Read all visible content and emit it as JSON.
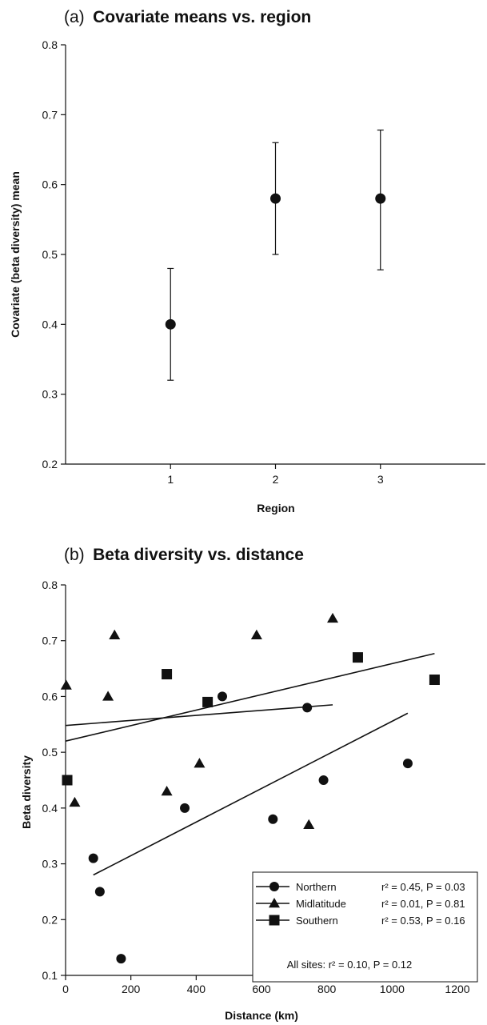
{
  "chart_data": [
    {
      "type": "scatter",
      "panel": "(a)",
      "title": "Covariate   means vs. region",
      "xlabel": "Region",
      "ylabel": "Covariate (beta diversity) mean",
      "xlim": [
        0,
        4
      ],
      "ylim": [
        0.2,
        0.8
      ],
      "xticks": [
        1,
        2,
        3
      ],
      "yticks": [
        0.2,
        0.3,
        0.4,
        0.5,
        0.6,
        0.7,
        0.8
      ],
      "grid": false,
      "points": [
        {
          "x": 1,
          "y": 0.4,
          "err_low": 0.32,
          "err_high": 0.48
        },
        {
          "x": 2,
          "y": 0.58,
          "err_low": 0.5,
          "err_high": 0.66
        },
        {
          "x": 3,
          "y": 0.58,
          "err_low": 0.478,
          "err_high": 0.678
        }
      ]
    },
    {
      "type": "scatter",
      "panel": "(b)",
      "title": "Beta diversity vs. distance",
      "xlabel": "Distance (km)",
      "ylabel": "Beta diversity",
      "xlim": [
        0,
        1200
      ],
      "ylim": [
        0.1,
        0.8
      ],
      "xticks": [
        0,
        200,
        400,
        600,
        800,
        1000,
        1200
      ],
      "yticks": [
        0.1,
        0.2,
        0.3,
        0.4,
        0.5,
        0.6,
        0.7,
        0.8
      ],
      "grid": false,
      "legend_position": "bottom-right",
      "series": [
        {
          "name": "Northern",
          "marker": "circle",
          "stat": "r² = 0.45, P = 0.03",
          "points": [
            [
              85,
              0.31
            ],
            [
              105,
              0.25
            ],
            [
              170,
              0.13
            ],
            [
              365,
              0.4
            ],
            [
              480,
              0.6
            ],
            [
              635,
              0.38
            ],
            [
              740,
              0.58
            ],
            [
              790,
              0.45
            ],
            [
              1048,
              0.48
            ]
          ],
          "fit": [
            [
              85,
              0.28
            ],
            [
              1048,
              0.57
            ]
          ]
        },
        {
          "name": "Midlatitude",
          "marker": "triangle",
          "stat": "r² = 0.01, P = 0.81",
          "points": [
            [
              2,
              0.62
            ],
            [
              28,
              0.41
            ],
            [
              130,
              0.6
            ],
            [
              150,
              0.71
            ],
            [
              310,
              0.43
            ],
            [
              410,
              0.48
            ],
            [
              585,
              0.71
            ],
            [
              745,
              0.37
            ],
            [
              818,
              0.74
            ]
          ],
          "fit": [
            [
              0,
              0.548
            ],
            [
              818,
              0.585
            ]
          ]
        },
        {
          "name": "Southern",
          "marker": "square",
          "stat": "r² = 0.53, P = 0.16",
          "points": [
            [
              5,
              0.45
            ],
            [
              310,
              0.64
            ],
            [
              435,
              0.59
            ],
            [
              895,
              0.67
            ],
            [
              1130,
              0.63
            ]
          ],
          "fit": [
            [
              0,
              0.52
            ],
            [
              1130,
              0.677
            ]
          ]
        }
      ],
      "annotation": "All sites: r² = 0.10, P = 0.12"
    }
  ]
}
